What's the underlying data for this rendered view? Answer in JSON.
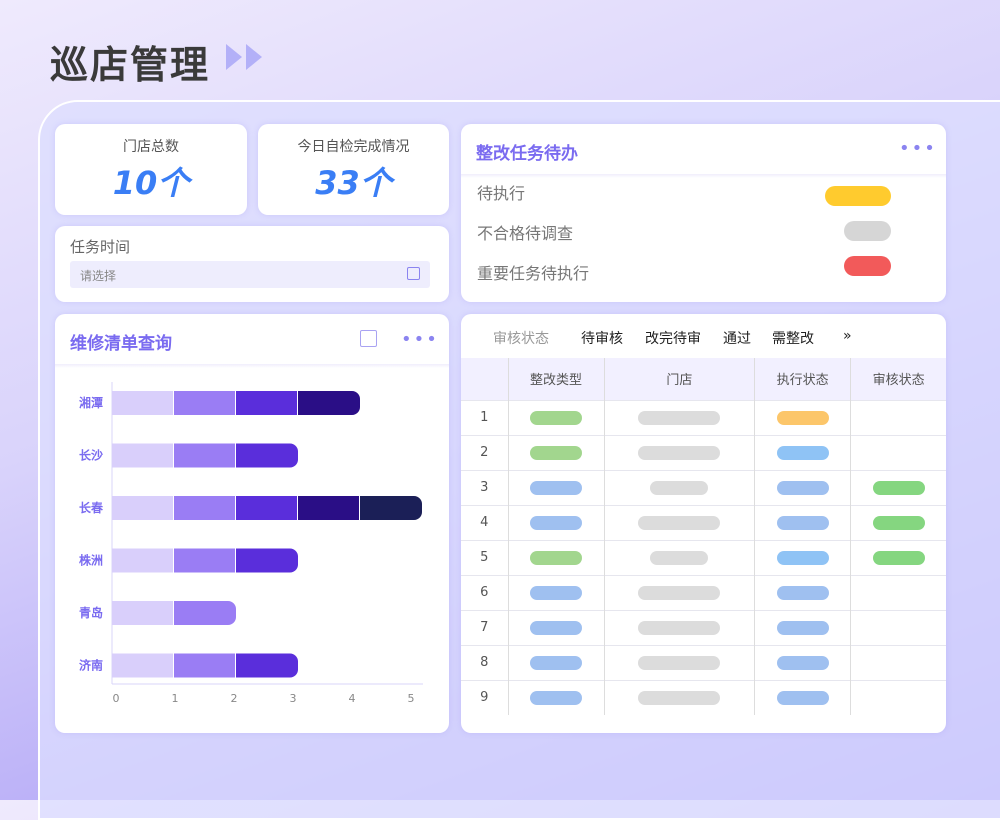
{
  "header": {
    "title": "巡店管理"
  },
  "stats": [
    {
      "label": "门店总数",
      "value": "10个"
    },
    {
      "label": "今日自检完成情况",
      "value": "33个"
    }
  ],
  "task_time": {
    "label": "任务时间",
    "placeholder": "请选择"
  },
  "todo": {
    "title": "整改任务待办",
    "items": [
      {
        "label": "待执行",
        "color": "#ffcb2e"
      },
      {
        "label": "不合格待调查",
        "color": "#d6d6d6"
      },
      {
        "label": "重要任务待执行",
        "color": "#f25a5a"
      }
    ]
  },
  "repair": {
    "title": "维修清单查询"
  },
  "chart_data": {
    "type": "bar",
    "orientation": "horizontal",
    "stacked": true,
    "categories": [
      "湘潭",
      "长沙",
      "长春",
      "株洲",
      "青岛",
      "济南"
    ],
    "values": [
      4,
      3,
      5,
      3,
      2,
      3
    ],
    "segment_colors": [
      "#d9cffb",
      "#9a7df4",
      "#5a2edb",
      "#2a0e86",
      "#1b1f57"
    ],
    "xticks": [
      "0",
      "1",
      "2",
      "3",
      "4",
      "5"
    ],
    "xlim": [
      0,
      5
    ]
  },
  "review": {
    "filter_label": "审核状态",
    "tabs": [
      "待审核",
      "改完待审",
      "通过",
      "需整改"
    ],
    "more": "»",
    "columns": [
      "整改类型",
      "门店",
      "执行状态",
      "审核状态"
    ],
    "rows": [
      {
        "n": "1",
        "c": [
          "#a2d68e",
          "#dcdcdc",
          "#fcc66a",
          ""
        ]
      },
      {
        "n": "2",
        "c": [
          "#a2d68e",
          "#dcdcdc",
          "#8fc3f5",
          ""
        ]
      },
      {
        "n": "3",
        "c": [
          "#9fc0f0",
          "#dcdcdc",
          "#9fc0f0",
          "#85d680"
        ]
      },
      {
        "n": "4",
        "c": [
          "#9fc0f0",
          "#dcdcdc",
          "#9fc0f0",
          "#85d680"
        ]
      },
      {
        "n": "5",
        "c": [
          "#a2d68e",
          "#dcdcdc",
          "#8fc3f5",
          "#85d680"
        ]
      },
      {
        "n": "6",
        "c": [
          "#9fc0f0",
          "#dcdcdc",
          "#9fc0f0",
          ""
        ]
      },
      {
        "n": "7",
        "c": [
          "#9fc0f0",
          "#dcdcdc",
          "#9fc0f0",
          ""
        ]
      },
      {
        "n": "8",
        "c": [
          "#9fc0f0",
          "#dcdcdc",
          "#9fc0f0",
          ""
        ]
      },
      {
        "n": "9",
        "c": [
          "#9fc0f0",
          "#dcdcdc",
          "#9fc0f0",
          ""
        ]
      }
    ]
  }
}
